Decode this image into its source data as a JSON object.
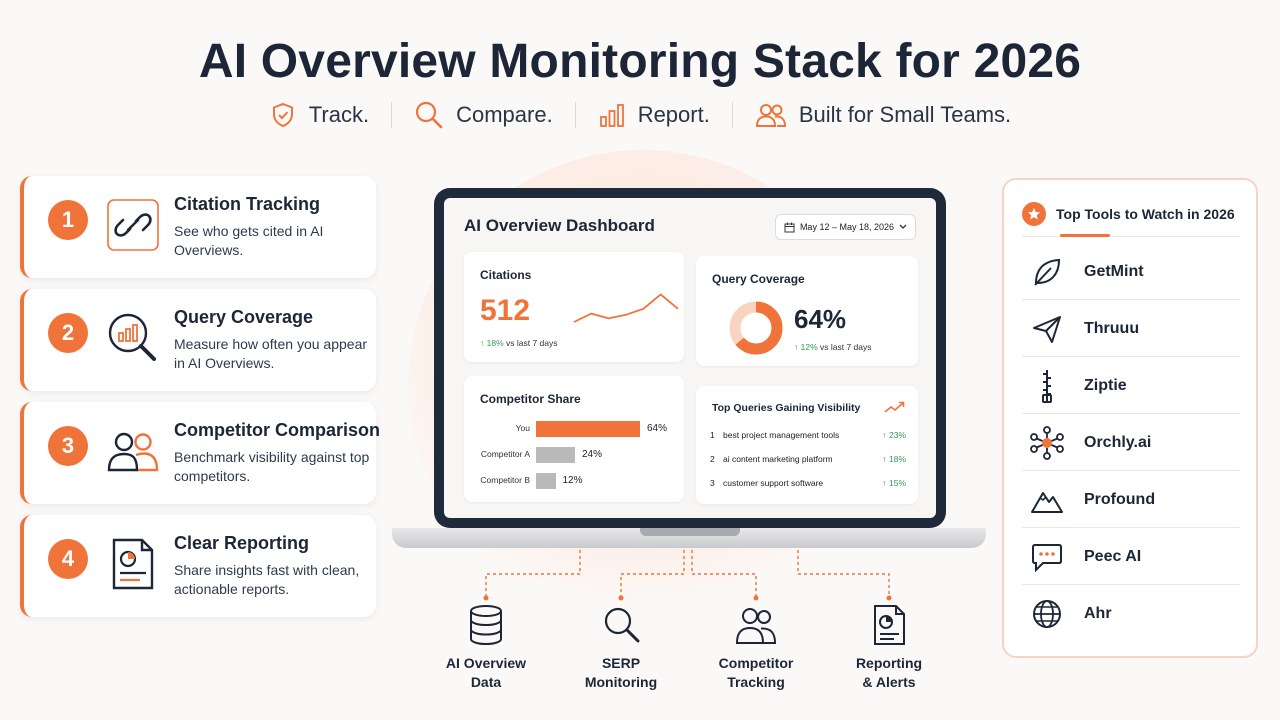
{
  "header": {
    "title": "AI Overview Monitoring Stack for 2026",
    "taglines": [
      "Track.",
      "Compare.",
      "Report.",
      "Built for Small Teams."
    ]
  },
  "features": [
    {
      "num": "1",
      "title": "Citation Tracking",
      "desc": "See who gets cited in AI Overviews.",
      "icon": "link-icon"
    },
    {
      "num": "2",
      "title": "Query Coverage",
      "desc": "Measure how often you appear in AI Overviews.",
      "icon": "magnifier-chart-icon"
    },
    {
      "num": "3",
      "title": "Competitor Comparison",
      "desc": "Benchmark visibility against top competitors.",
      "icon": "users-icon"
    },
    {
      "num": "4",
      "title": "Clear Reporting",
      "desc": "Share insights fast with clean, actionable reports.",
      "icon": "report-document-icon"
    }
  ],
  "dashboard": {
    "title": "AI Overview Dashboard",
    "date_range": "May 12 – May 18, 2026",
    "citations": {
      "label": "Citations",
      "value": "512",
      "delta": "18%",
      "delta_suffix": "vs last 7 days"
    },
    "query_coverage": {
      "label": "Query Coverage",
      "value": "64%",
      "percent": 64,
      "delta": "12%",
      "delta_suffix": "vs last 7 days"
    },
    "competitor_share": {
      "label": "Competitor Share",
      "rows": [
        {
          "name": "You",
          "value": 64,
          "display": "64%",
          "color": "#f0733a"
        },
        {
          "name": "Competitor A",
          "value": 24,
          "display": "24%",
          "color": "#b9b9b9"
        },
        {
          "name": "Competitor B",
          "value": 12,
          "display": "12%",
          "color": "#b9b9b9"
        }
      ]
    },
    "top_queries": {
      "label": "Top Queries Gaining Visibility",
      "rows": [
        {
          "n": "1",
          "query": "best project management tools",
          "delta": "23%"
        },
        {
          "n": "2",
          "query": "ai content marketing platform",
          "delta": "18%"
        },
        {
          "n": "3",
          "query": "customer support software",
          "delta": "15%"
        }
      ]
    }
  },
  "chart_data": {
    "type": "line",
    "title": "Citations",
    "x": [
      1,
      2,
      3,
      4,
      5,
      6,
      7
    ],
    "series": [
      {
        "values": [
          10,
          17,
          13,
          16,
          21,
          33,
          21
        ]
      }
    ]
  },
  "connectors": [
    {
      "label": "AI Overview\nData",
      "icon": "database-icon"
    },
    {
      "label": "SERP\nMonitoring",
      "icon": "search-icon"
    },
    {
      "label": "Competitor\nTracking",
      "icon": "users-icon"
    },
    {
      "label": "Reporting\n& Alerts",
      "icon": "report-icon"
    }
  ],
  "tools": {
    "heading": "Top Tools to Watch in 2026",
    "items": [
      {
        "name": "GetMint",
        "icon": "leaf-icon"
      },
      {
        "name": "Thruuu",
        "icon": "paper-plane-icon"
      },
      {
        "name": "Ziptie",
        "icon": "zipper-icon"
      },
      {
        "name": "Orchly.ai",
        "icon": "network-icon"
      },
      {
        "name": "Profound",
        "icon": "mountain-icon"
      },
      {
        "name": "Peec AI",
        "icon": "chat-bubble-icon"
      },
      {
        "name": "Ahr",
        "icon": "globe-icon"
      }
    ]
  },
  "colors": {
    "accent": "#f0733a",
    "positive": "#2e9e56",
    "ink": "#1c2636"
  }
}
